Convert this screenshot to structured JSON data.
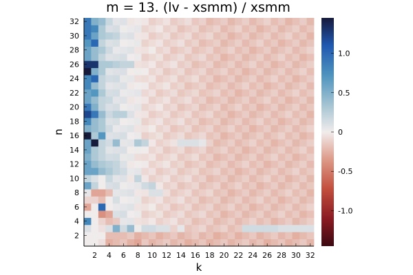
{
  "chart_data": {
    "type": "heatmap",
    "title": "m = 13. (lv - xsmm) / xsmm",
    "xlabel": "k",
    "ylabel": "n",
    "x_range": [
      1,
      32
    ],
    "y_range": [
      1,
      32
    ],
    "xticks": [
      "2",
      "4",
      "6",
      "8",
      "10",
      "12",
      "14",
      "16",
      "18",
      "20",
      "22",
      "24",
      "26",
      "28",
      "30",
      "32"
    ],
    "yticks": [
      "2",
      "4",
      "6",
      "8",
      "10",
      "12",
      "14",
      "16",
      "18",
      "20",
      "22",
      "24",
      "26",
      "28",
      "30",
      "32"
    ],
    "colorbar": {
      "limits": [
        -1.45,
        1.45
      ],
      "ticks": [
        "-1.0",
        "-0.5",
        "0",
        "0.5",
        "1.0"
      ],
      "tick_values": [
        -1.0,
        -0.5,
        0,
        0.5,
        1.0
      ],
      "colormap": "balance"
    },
    "grid": false,
    "legend": "colorbar-right",
    "overrides": [
      [
        1,
        32,
        0.9
      ],
      [
        1,
        31,
        0.9
      ],
      [
        1,
        30,
        0.9
      ],
      [
        1,
        29,
        0.7
      ],
      [
        1,
        28,
        0.6
      ],
      [
        1,
        27,
        0.6
      ],
      [
        1,
        26,
        1.3
      ],
      [
        1,
        25,
        1.45
      ],
      [
        1,
        24,
        0.8
      ],
      [
        1,
        23,
        0.8
      ],
      [
        1,
        22,
        0.6
      ],
      [
        1,
        21,
        0.6
      ],
      [
        1,
        20,
        0.9
      ],
      [
        1,
        19,
        1.2
      ],
      [
        1,
        18,
        0.8
      ],
      [
        1,
        17,
        0.5
      ],
      [
        1,
        16,
        1.45
      ],
      [
        1,
        15,
        0.6
      ],
      [
        1,
        14,
        0.6
      ],
      [
        1,
        13,
        0.5
      ],
      [
        1,
        12,
        0.6
      ],
      [
        1,
        11,
        0.6
      ],
      [
        1,
        10,
        0.2
      ],
      [
        1,
        9,
        0.6
      ],
      [
        1,
        8,
        0.05
      ],
      [
        1,
        7,
        -0.1
      ],
      [
        1,
        6,
        -0.3
      ],
      [
        1,
        5,
        0.0
      ],
      [
        1,
        4,
        0.8
      ],
      [
        1,
        3,
        0.1
      ],
      [
        2,
        32,
        0.5
      ],
      [
        2,
        31,
        0.8
      ],
      [
        2,
        30,
        0.6
      ],
      [
        2,
        29,
        1.0
      ],
      [
        2,
        28,
        0.4
      ],
      [
        2,
        27,
        0.4
      ],
      [
        2,
        26,
        1.3
      ],
      [
        2,
        25,
        0.5
      ],
      [
        2,
        24,
        1.0
      ],
      [
        2,
        23,
        0.4
      ],
      [
        2,
        22,
        0.7
      ],
      [
        2,
        21,
        0.4
      ],
      [
        2,
        20,
        0.5
      ],
      [
        2,
        19,
        0.9
      ],
      [
        2,
        18,
        0.4
      ],
      [
        2,
        17,
        0.4
      ],
      [
        2,
        16,
        0.3
      ],
      [
        2,
        15,
        1.45
      ],
      [
        2,
        14,
        0.3
      ],
      [
        2,
        13,
        0.3
      ],
      [
        2,
        12,
        0.4
      ],
      [
        2,
        11,
        0.6
      ],
      [
        2,
        10,
        0.1
      ],
      [
        2,
        9,
        0.2
      ],
      [
        2,
        8,
        -0.3
      ],
      [
        2,
        7,
        -0.1
      ],
      [
        2,
        6,
        0.0
      ],
      [
        2,
        5,
        0.0
      ],
      [
        2,
        4,
        0.0
      ],
      [
        2,
        3,
        0.0
      ],
      [
        3,
        32,
        0.4
      ],
      [
        3,
        31,
        0.3
      ],
      [
        3,
        30,
        0.3
      ],
      [
        3,
        29,
        0.2
      ],
      [
        3,
        28,
        0.3
      ],
      [
        3,
        27,
        0.2
      ],
      [
        3,
        26,
        0.3
      ],
      [
        3,
        25,
        0.3
      ],
      [
        3,
        24,
        0.2
      ],
      [
        3,
        23,
        0.2
      ],
      [
        3,
        22,
        0.3
      ],
      [
        3,
        21,
        0.2
      ],
      [
        3,
        20,
        0.2
      ],
      [
        3,
        19,
        0.4
      ],
      [
        3,
        18,
        0.3
      ],
      [
        3,
        17,
        0.3
      ],
      [
        3,
        16,
        0.7
      ],
      [
        3,
        15,
        0.2
      ],
      [
        3,
        14,
        0.2
      ],
      [
        3,
        13,
        0.2
      ],
      [
        3,
        12,
        0.3
      ],
      [
        3,
        11,
        0.4
      ],
      [
        3,
        10,
        0.0
      ],
      [
        3,
        9,
        0.0
      ],
      [
        3,
        8,
        -0.3
      ],
      [
        3,
        7,
        -0.2
      ],
      [
        3,
        6,
        1.0
      ],
      [
        3,
        5,
        -0.4
      ],
      [
        3,
        4,
        -0.1
      ],
      [
        4,
        8,
        -0.2
      ],
      [
        4,
        7,
        0.0
      ],
      [
        4,
        6,
        0.0
      ],
      [
        4,
        5,
        -0.3
      ],
      [
        4,
        4,
        -0.2
      ],
      [
        4,
        3,
        0.1
      ],
      [
        5,
        15,
        0.4
      ],
      [
        5,
        4,
        -0.15
      ],
      [
        5,
        3,
        0.5
      ],
      [
        7,
        3,
        0.4
      ],
      [
        8,
        15,
        0.3
      ],
      [
        8,
        10,
        0.2
      ],
      [
        9,
        15,
        0.2
      ],
      [
        9,
        9,
        0.15
      ],
      [
        10,
        9,
        0.2
      ],
      [
        10,
        8,
        0.1
      ],
      [
        11,
        8,
        0.1
      ],
      [
        4,
        26,
        0.3
      ],
      [
        5,
        26,
        0.25
      ],
      [
        6,
        26,
        0.2
      ],
      [
        7,
        26,
        0.2
      ],
      [
        4,
        30,
        0.25
      ],
      [
        5,
        30,
        0.2
      ],
      [
        5,
        19,
        0.25
      ],
      [
        6,
        19,
        0.25
      ],
      [
        4,
        12,
        0.25
      ],
      [
        5,
        12,
        0.2
      ],
      [
        4,
        11,
        0.3
      ],
      [
        5,
        11,
        0.2
      ],
      [
        6,
        11,
        0.15
      ],
      [
        23,
        3,
        0.15
      ],
      [
        24,
        3,
        0.15
      ],
      [
        25,
        3,
        0.15
      ],
      [
        26,
        3,
        0.15
      ],
      [
        27,
        3,
        0.15
      ],
      [
        28,
        3,
        0.1
      ],
      [
        29,
        3,
        0.1
      ],
      [
        30,
        3,
        0.1
      ],
      [
        31,
        3,
        0.1
      ],
      [
        32,
        3,
        0.1
      ],
      [
        6,
        3,
        0.15
      ],
      [
        9,
        3,
        0.15
      ],
      [
        10,
        3,
        0.15
      ],
      [
        11,
        3,
        0.1
      ],
      [
        12,
        3,
        0.1
      ],
      [
        14,
        3,
        0.05
      ],
      [
        15,
        15,
        0.1
      ],
      [
        16,
        15,
        0.1
      ],
      [
        14,
        15,
        0.1
      ],
      [
        17,
        15,
        0.05
      ],
      [
        3,
        3,
        -0.05
      ],
      [
        2,
        2,
        0.0
      ],
      [
        3,
        2,
        0.0
      ],
      [
        1,
        2,
        0.0
      ],
      [
        1,
        1,
        0.0
      ],
      [
        2,
        1,
        0.0
      ],
      [
        3,
        1,
        -0.05
      ],
      [
        7,
        1,
        -0.25
      ],
      [
        4,
        2,
        -0.2
      ],
      [
        5,
        2,
        -0.2
      ],
      [
        6,
        2,
        -0.2
      ],
      [
        7,
        2,
        -0.15
      ],
      [
        8,
        2,
        -0.25
      ],
      [
        8,
        1,
        -0.3
      ]
    ]
  }
}
